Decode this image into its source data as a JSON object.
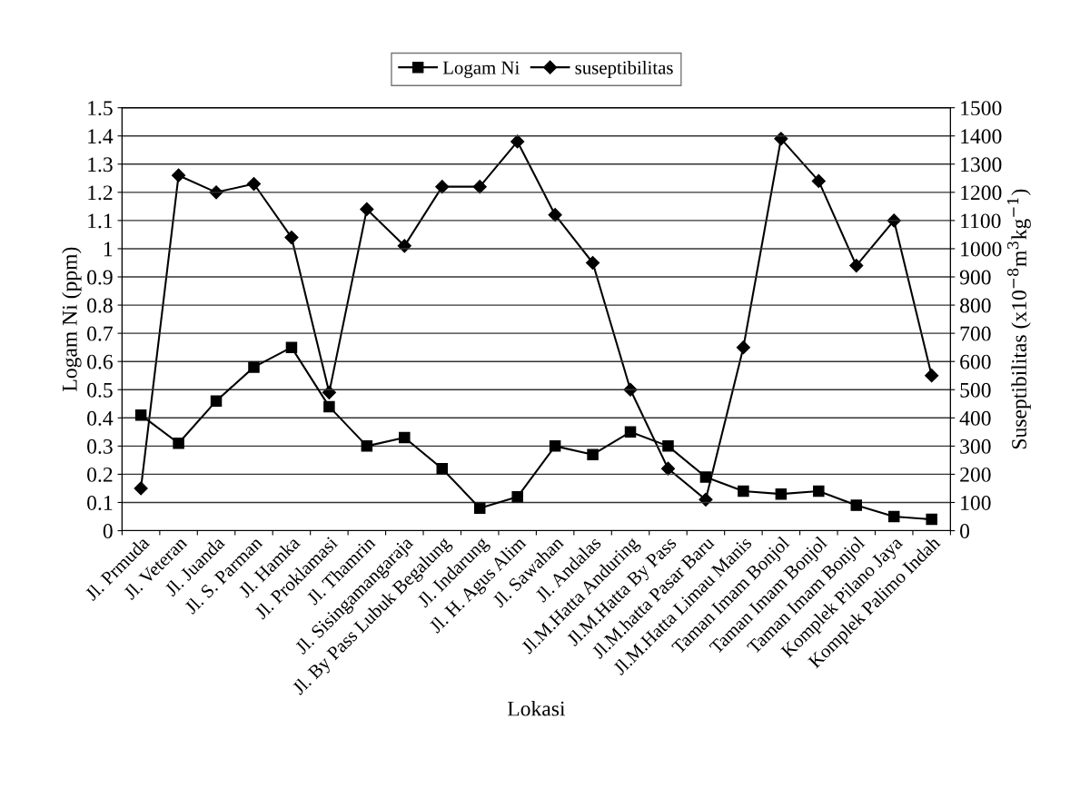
{
  "chart_data": {
    "type": "line",
    "xlabel": "Lokasi",
    "ylabel": "Logam Ni (ppm)",
    "y2label": "Suseptibilitas (x10$^{−8}$m$^{3}$kg$^{−1}$)",
    "categories": [
      "Jl. Prmuda",
      "Jl. Veteran",
      "Jl. Juanda",
      "Jl. S. Parman",
      "Jl. Hamka",
      "Jl. Proklamasi",
      "Jl. Thamrin",
      "Jl. Sisingamangaraja",
      "Jl. By Pass Lubuk Begalung",
      "Jl. Indarung",
      "Jl. H. Agus Alim",
      "Jl. Sawahan",
      "Jl. Andalas",
      "Jl.M.Hatta Anduring",
      "Jl.M.Hatta By Pass",
      "Jl.M.hatta Pasar Baru",
      "Jl.M.Hatta Limau Manis",
      "Taman Imam Bonjol",
      "Taman Imam Bonjol",
      "Taman Imam Bonjol",
      "Komplek Pilano Jaya",
      "Komplek Palimo Indah"
    ],
    "series": [
      {
        "name": "Logam Ni",
        "color": "#000000",
        "marker": "square",
        "values": [
          0.41,
          0.31,
          0.46,
          0.58,
          0.65,
          0.44,
          0.3,
          0.33,
          0.22,
          0.08,
          0.12,
          0.3,
          0.27,
          0.35,
          0.3,
          0.19,
          0.14,
          0.13,
          0.14,
          0.09,
          0.05,
          0.04
        ]
      },
      {
        "name": "suseptibilitas",
        "color": "#000000",
        "marker": "diamond",
        "axis": "y2",
        "values": [
          150,
          1260,
          1200,
          1230,
          1040,
          490,
          1140,
          1010,
          1220,
          1220,
          1380,
          1120,
          950,
          500,
          220,
          110,
          650,
          1390,
          1240,
          940,
          1100,
          550
        ]
      }
    ],
    "ylim": [
      0,
      1.5
    ],
    "yticks": [
      0,
      0.1,
      0.2,
      0.3,
      0.4,
      0.5,
      0.6,
      0.7,
      0.8,
      0.9,
      1,
      1.1,
      1.2,
      1.3,
      1.4,
      1.5
    ],
    "y2lim": [
      0,
      1500
    ],
    "y2ticks": [
      0,
      100,
      200,
      300,
      400,
      500,
      600,
      700,
      800,
      900,
      1000,
      1100,
      1200,
      1300,
      1400,
      1500
    ],
    "grid": "y",
    "legend": "top",
    "line_style": "solid"
  }
}
